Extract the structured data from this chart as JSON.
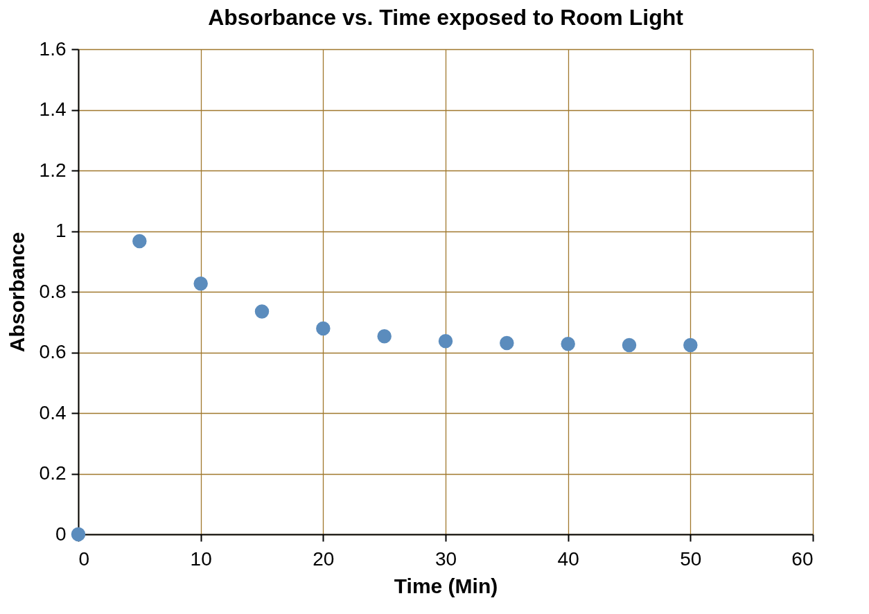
{
  "chart_data": {
    "type": "scatter",
    "title": "Absorbance vs. Time exposed to Room Light",
    "xlabel": "Time (Min)",
    "ylabel": "Absorbance",
    "x": [
      0,
      5,
      10,
      15,
      20,
      25,
      30,
      35,
      40,
      45,
      50
    ],
    "series": [
      {
        "color": "#5b8cbd",
        "values": [
          0,
          0.967,
          0.827,
          0.735,
          0.679,
          0.653,
          0.637,
          0.631,
          0.628,
          0.624,
          0.624
        ]
      }
    ],
    "xlim": [
      0,
      60
    ],
    "xticks": [
      0,
      10,
      20,
      30,
      40,
      50,
      60
    ],
    "ylim": [
      0,
      1.6
    ],
    "yticks": [
      0,
      0.2,
      0.4,
      0.6,
      0.8,
      1,
      1.2,
      1.4,
      1.6
    ],
    "grid": true,
    "marker": "circle"
  }
}
